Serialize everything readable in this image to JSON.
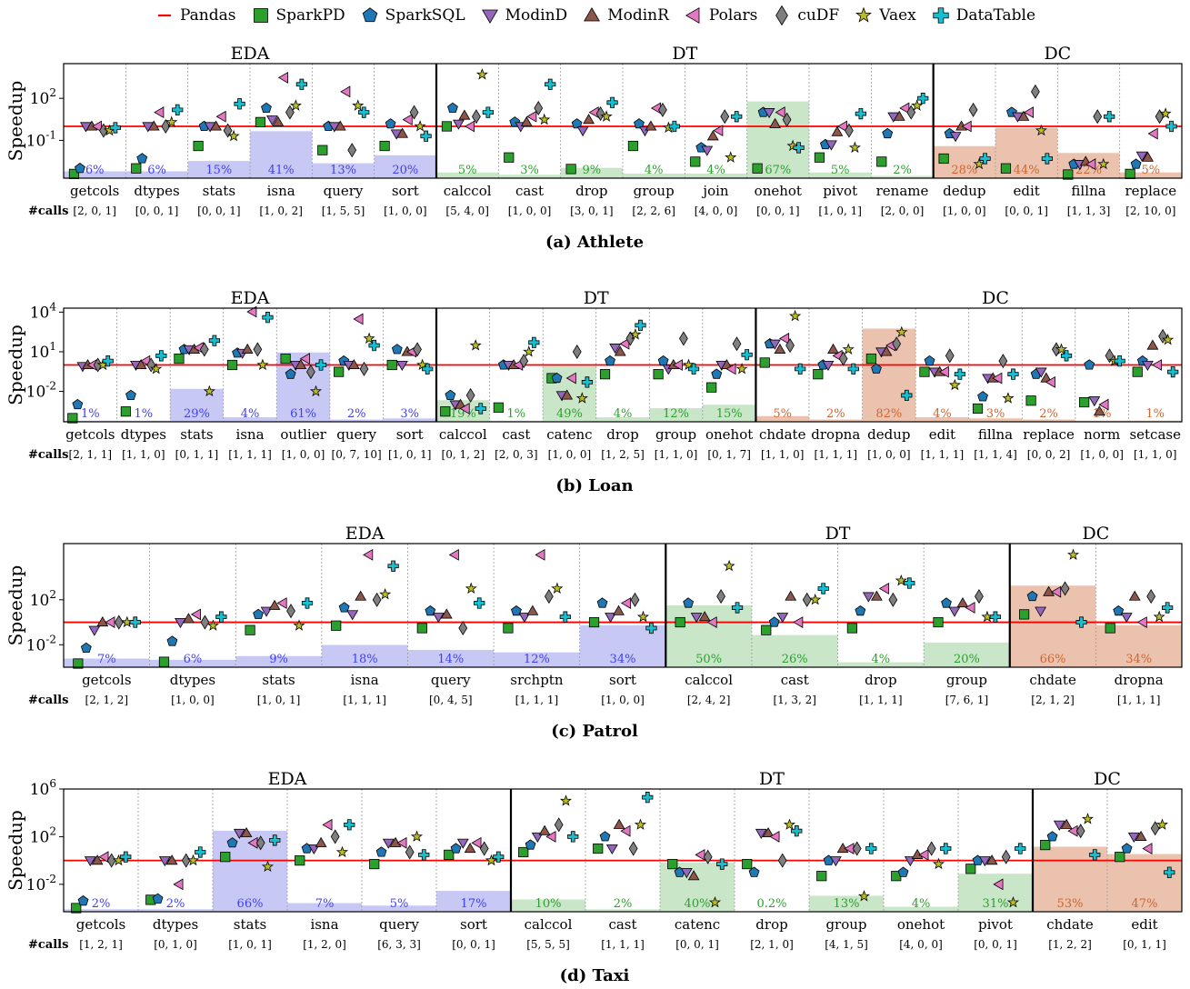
{
  "legend": [
    {
      "name": "Pandas",
      "color": "#ff0000",
      "marker": "line"
    },
    {
      "name": "SparkPD",
      "color": "#2ca02c",
      "marker": "square"
    },
    {
      "name": "SparkSQL",
      "color": "#1f77b4",
      "marker": "pentagon"
    },
    {
      "name": "ModinD",
      "color": "#9467bd",
      "marker": "triangle-down"
    },
    {
      "name": "ModinR",
      "color": "#8c564b",
      "marker": "triangle-up"
    },
    {
      "name": "Polars",
      "color": "#e377c2",
      "marker": "triangle-left"
    },
    {
      "name": "cuDF",
      "color": "#7f7f7f",
      "marker": "diamond"
    },
    {
      "name": "Vaex",
      "color": "#bcbd22",
      "marker": "star"
    },
    {
      "name": "DataTable",
      "color": "#17becf",
      "marker": "plus"
    }
  ],
  "common": {
    "ylabel": "Speedup",
    "calls_label": "#calls",
    "group_colors": {
      "EDA": "#4040ee",
      "DT": "#2ca02c",
      "DC": "#cc6633"
    }
  },
  "chart_data": [
    {
      "type": "scatter",
      "caption": "(a) Athlete",
      "ylabel": "Speedup",
      "yscale": "log",
      "ylim": [
        0.0002,
        30000
      ],
      "yticks": [
        {
          "v": 0.1,
          "label": "10^-1"
        },
        {
          "v": 100,
          "label": "10^2"
        }
      ],
      "baseline": 1,
      "groups": [
        {
          "name": "EDA",
          "n": 6
        },
        {
          "name": "DT",
          "n": 8
        },
        {
          "name": "DC",
          "n": 4
        }
      ],
      "categories": [
        "getcols",
        "dtypes",
        "stats",
        "isna",
        "query",
        "sort",
        "calccol",
        "cast",
        "drop",
        "group",
        "join",
        "onehot",
        "pivot",
        "rename",
        "dedup",
        "edit",
        "fillna",
        "replace"
      ],
      "calls": [
        "[2, 0, 1]",
        "[0, 0, 1]",
        "[0, 0, 1]",
        "[1, 0, 2]",
        "[1, 5, 5]",
        "[1, 0, 0]",
        "[5, 4, 0]",
        "[1, 0, 0]",
        "[3, 0, 1]",
        "[2, 2, 6]",
        "[4, 0, 0]",
        "[0, 0, 1]",
        "[1, 0, 1]",
        "[2, 0, 0]",
        "[1, 0, 0]",
        "[0, 0, 1]",
        "[1, 1, 3]",
        "[2, 10, 0]"
      ],
      "share": [
        6,
        6,
        15,
        41,
        13,
        20,
        5,
        3,
        9,
        4,
        4,
        67,
        5,
        2,
        28,
        44,
        22,
        5
      ],
      "share_labels": [
        "6%",
        "6%",
        "15%",
        "41%",
        "13%",
        "20%",
        "5%",
        "3%",
        "9%",
        "4%",
        "4%",
        "67%",
        "5%",
        "2%",
        "28%",
        "44%",
        "22%",
        "5%"
      ],
      "series": [
        {
          "name": "SparkPD",
          "values": [
            0.0004,
            0.001,
            0.04,
            2,
            0.02,
            0.04,
            1,
            0.006,
            0.0009,
            0.04,
            0.003,
            0.001,
            0.006,
            0.003,
            0.005,
            0.001,
            0.0003,
            0.0004
          ]
        },
        {
          "name": "SparkSQL",
          "values": [
            0.001,
            0.005,
            1,
            20,
            1,
            1.5,
            20,
            2,
            1.5,
            1.5,
            0.03,
            10,
            0.05,
            0.3,
            0.3,
            10,
            0.002,
            0.002
          ]
        },
        {
          "name": "ModinD",
          "values": [
            1,
            1,
            1,
            3,
            1,
            0.3,
            1.5,
            1,
            0.5,
            0.5,
            0.02,
            10,
            0.05,
            5,
            0.2,
            5,
            0.002,
            0.008
          ]
        },
        {
          "name": "ModinR",
          "values": [
            1,
            1,
            1,
            2,
            1,
            0.3,
            6,
            2,
            3,
            1,
            0.2,
            1.5,
            0.4,
            5,
            1,
            5,
            0.003,
            0.006
          ]
        },
        {
          "name": "Polars",
          "values": [
            1,
            10,
            5,
            3000,
            300,
            3,
            1,
            5,
            10,
            20,
            0.5,
            10,
            1,
            20,
            1,
            10,
            0.002,
            0.3
          ]
        },
        {
          "name": "cuDF",
          "values": [
            0.5,
            1,
            0.5,
            10,
            0.02,
            10,
            5,
            20,
            8,
            15,
            5,
            3,
            0.5,
            10,
            15,
            300,
            5,
            5
          ]
        },
        {
          "name": "Vaex",
          "values": [
            0.5,
            2,
            0.2,
            30,
            30,
            1,
            5000,
            3,
            5,
            0.8,
            0.006,
            0.04,
            0.03,
            30,
            0.002,
            0.5,
            0.002,
            8
          ]
        },
        {
          "name": "DataTable",
          "values": [
            0.8,
            15,
            40,
            1000,
            10,
            0.2,
            10,
            1000,
            50,
            1,
            5,
            0.03,
            8,
            100,
            0.005,
            0.005,
            5,
            1
          ]
        }
      ]
    },
    {
      "type": "scatter",
      "caption": "(b) Loan",
      "ylabel": "Speedup",
      "yscale": "log",
      "ylim": [
        5e-05,
        20000
      ],
      "yticks": [
        {
          "v": 0.01,
          "label": "10^-2"
        },
        {
          "v": 10,
          "label": "10^1"
        },
        {
          "v": 10000,
          "label": "10^4"
        }
      ],
      "baseline": 1,
      "groups": [
        {
          "name": "EDA",
          "n": 7
        },
        {
          "name": "DT",
          "n": 6
        },
        {
          "name": "DC",
          "n": 9
        }
      ],
      "categories": [
        "getcols",
        "dtypes",
        "stats",
        "isna",
        "outlier",
        "query",
        "sort",
        "calccol",
        "cast",
        "catenc",
        "drop",
        "group",
        "onehot",
        "chdate",
        "dropna",
        "dedup",
        "edit",
        "fillna",
        "replace",
        "norm",
        "setcase"
      ],
      "calls": [
        "[2, 1, 1]",
        "[1, 1, 0]",
        "[0, 1, 1]",
        "[1, 1, 1]",
        "[1, 0, 0]",
        "[0, 7, 10]",
        "[1, 0, 1]",
        "[0, 1, 2]",
        "[2, 0, 3]",
        "[1, 0, 0]",
        "[1, 2, 5]",
        "[1, 1, 0]",
        "[0, 1, 7]",
        "[1, 1, 0]",
        "[1, 1, 1]",
        "[1, 0, 0]",
        "[1, 1, 1]",
        "[1, 1, 4]",
        "[0, 0, 2]",
        "[1, 0, 0]",
        "[1, 1, 0]"
      ],
      "share": [
        1,
        1,
        29,
        4,
        61,
        2,
        3,
        19,
        1,
        49,
        4,
        12,
        15,
        5,
        2,
        82,
        4,
        3,
        2,
        1,
        1
      ],
      "share_labels": [
        "1%",
        "1%",
        "29%",
        "4%",
        "61%",
        "2%",
        "3%",
        "19%",
        "1%",
        "49%",
        "4%",
        "12%",
        "15%",
        "5%",
        "2%",
        "82%",
        "4%",
        "3%",
        "2%",
        "1%",
        "1%"
      ],
      "series": [
        {
          "name": "SparkPD",
          "values": [
            8e-05,
            0.0003,
            3,
            1,
            3,
            0.3,
            1,
            0.0003,
            0.0006,
            0.1,
            0.2,
            0.2,
            0.02,
            1.5,
            0.2,
            3,
            0.3,
            0.0005,
            0.002,
            0.0015,
            0.3
          ]
        },
        {
          "name": "SparkSQL",
          "values": [
            0.001,
            0.005,
            15,
            8,
            0.2,
            2,
            15,
            0.005,
            1,
            0.1,
            2,
            2,
            0.2,
            40,
            1,
            0.5,
            2,
            0.004,
            0.2,
            1,
            2
          ]
        },
        {
          "name": "ModinD",
          "values": [
            0.8,
            1,
            15,
            8,
            1,
            1,
            1,
            0.001,
            1,
            0.005,
            20,
            0.5,
            1,
            40,
            1,
            10,
            0.3,
            0.1,
            0.3,
            0.002,
            1
          ]
        },
        {
          "name": "ModinR",
          "values": [
            1,
            1,
            15,
            15,
            1,
            1,
            10,
            0.001,
            1,
            0.005,
            10,
            1,
            1,
            15,
            15,
            10,
            0.3,
            0.1,
            0.1,
            0.0003,
            30
          ]
        },
        {
          "name": "Polars",
          "values": [
            1,
            2,
            20,
            30000,
            3,
            3000,
            10,
            0.0005,
            1,
            0.1,
            40,
            1,
            0.5,
            100,
            5,
            30,
            0.3,
            0.1,
            0.05,
            0.001,
            1
          ]
        },
        {
          "name": "cuDF",
          "values": [
            1,
            1,
            15,
            15,
            0.3,
            0.5,
            15,
            0.005,
            2,
            10,
            100,
            100,
            40,
            30,
            3,
            40,
            5,
            2,
            15,
            5,
            150
          ]
        },
        {
          "name": "Vaex",
          "values": [
            1,
            0.5,
            0.01,
            1,
            0.01,
            100,
            1,
            30,
            10,
            0.003,
            200,
            1,
            0.5,
            5000,
            15,
            300,
            0.03,
            0.003,
            15,
            2,
            80
          ]
        },
        {
          "name": "DataTable",
          "values": [
            2,
            5,
            70,
            4000,
            1,
            30,
            0.5,
            0.0005,
            50,
            0.05,
            1000,
            0.5,
            6,
            0.5,
            0.5,
            0.005,
            0.2,
            0.2,
            5,
            2,
            0.3
          ]
        }
      ]
    },
    {
      "type": "scatter",
      "caption": "(c) Patrol",
      "ylabel": "Speedup",
      "yscale": "log",
      "ylim": [
        0.0001,
        10000000
      ],
      "yticks": [
        {
          "v": 0.01,
          "label": "10^-2"
        },
        {
          "v": 100,
          "label": "10^2"
        }
      ],
      "baseline": 1,
      "groups": [
        {
          "name": "EDA",
          "n": 7
        },
        {
          "name": "DT",
          "n": 4
        },
        {
          "name": "DC",
          "n": 2
        }
      ],
      "categories": [
        "getcols",
        "dtypes",
        "stats",
        "isna",
        "query",
        "srchptn",
        "sort",
        "calccol",
        "cast",
        "drop",
        "group",
        "chdate",
        "dropna"
      ],
      "calls": [
        "[2, 1, 2]",
        "[1, 0, 0]",
        "[1, 0, 1]",
        "[1, 1, 1]",
        "[0, 4, 5]",
        "[1, 1, 1]",
        "[1, 0, 0]",
        "[2, 4, 2]",
        "[1, 3, 2]",
        "[1, 1, 1]",
        "[7, 6, 1]",
        "[2, 1, 2]",
        "[1, 1, 1]"
      ],
      "share": [
        7,
        6,
        9,
        18,
        14,
        12,
        34,
        50,
        26,
        4,
        20,
        66,
        34
      ],
      "share_labels": [
        "7%",
        "6%",
        "9%",
        "18%",
        "14%",
        "12%",
        "34%",
        "50%",
        "26%",
        "4%",
        "20%",
        "66%",
        "34%"
      ],
      "series": [
        {
          "name": "SparkPD",
          "values": [
            0.0001,
            0.0003,
            0.2,
            0.5,
            0.3,
            0.3,
            1,
            1,
            0.2,
            0.3,
            1,
            5,
            0.3
          ]
        },
        {
          "name": "SparkSQL",
          "values": [
            0.005,
            0.02,
            5,
            20,
            10,
            10,
            50,
            50,
            1,
            10,
            50,
            200,
            10
          ]
        },
        {
          "name": "ModinD",
          "values": [
            0.2,
            1,
            10,
            5,
            3,
            3,
            3,
            3,
            3,
            200,
            10,
            10,
            3
          ]
        },
        {
          "name": "ModinR",
          "values": [
            1,
            2,
            30,
            200,
            5,
            10,
            10,
            3,
            200,
            200,
            50,
            500,
            200
          ]
        },
        {
          "name": "Polars",
          "values": [
            1,
            5,
            50,
            1000000,
            1000000,
            1000000,
            50,
            1,
            1,
            1000,
            20,
            500,
            1
          ]
        },
        {
          "name": "cuDF",
          "values": [
            1,
            1,
            10,
            100,
            0.3,
            200,
            100,
            200,
            100,
            100,
            200,
            1000,
            200
          ]
        },
        {
          "name": "Vaex",
          "values": [
            1,
            0.5,
            0.5,
            300,
            1000,
            1000,
            3,
            100000,
            100,
            5000,
            3,
            1000000,
            3
          ]
        },
        {
          "name": "DataTable",
          "values": [
            1,
            3,
            50,
            100000,
            50,
            3,
            0.3,
            20,
            1000,
            3000,
            3,
            1,
            20
          ]
        }
      ]
    },
    {
      "type": "scatter",
      "caption": "(d) Taxi",
      "ylabel": "Speedup",
      "yscale": "log",
      "ylim": [
        5e-05,
        1000000
      ],
      "yticks": [
        {
          "v": 0.01,
          "label": "10^-2"
        },
        {
          "v": 100,
          "label": "10^2"
        },
        {
          "v": 1000000,
          "label": "10^6"
        }
      ],
      "baseline": 1,
      "groups": [
        {
          "name": "EDA",
          "n": 6
        },
        {
          "name": "DT",
          "n": 7
        },
        {
          "name": "DC",
          "n": 2
        }
      ],
      "categories": [
        "getcols",
        "dtypes",
        "stats",
        "isna",
        "query",
        "sort",
        "calccol",
        "cast",
        "catenc",
        "drop",
        "group",
        "onehot",
        "pivot",
        "chdate",
        "edit"
      ],
      "calls": [
        "[1, 2, 1]",
        "[0, 1, 0]",
        "[1, 0, 1]",
        "[1, 2, 0]",
        "[6, 3, 3]",
        "[0, 0, 1]",
        "[5, 5, 5]",
        "[1, 1, 1]",
        "[0, 0, 1]",
        "[2, 1, 0]",
        "[4, 1, 5]",
        "[4, 0, 0]",
        "[0, 0, 1]",
        "[1, 2, 2]",
        "[0, 1, 1]"
      ],
      "share": [
        2,
        2,
        66,
        7,
        5,
        17,
        10,
        2,
        40,
        0.2,
        13,
        4,
        31,
        53,
        47
      ],
      "share_labels": [
        "2%",
        "2%",
        "66%",
        "7%",
        "5%",
        "17%",
        "10%",
        "2%",
        "40%",
        "0.2%",
        "13%",
        "4%",
        "31%",
        "53%",
        "47%"
      ],
      "series": [
        {
          "name": "SparkPD",
          "values": [
            0.0001,
            0.0005,
            2,
            1,
            0.5,
            3,
            5,
            10,
            0.5,
            0.5,
            0.05,
            0.05,
            0.2,
            20,
            2
          ]
        },
        {
          "name": "SparkSQL",
          "values": [
            0.0004,
            0.0006,
            30,
            10,
            5,
            10,
            20,
            100,
            0.1,
            0.1,
            1,
            0.1,
            1,
            100,
            10
          ]
        },
        {
          "name": "ModinD",
          "values": [
            1,
            1,
            200,
            10,
            30,
            30,
            100,
            10,
            0.1,
            200,
            1,
            1,
            1,
            1000,
            100
          ]
        },
        {
          "name": "ModinR",
          "values": [
            1,
            1,
            200,
            30,
            30,
            10,
            300,
            1000,
            0.05,
            200,
            10,
            3,
            1,
            1000,
            100
          ]
        },
        {
          "name": "Polars",
          "values": [
            2,
            0.01,
            30,
            1000,
            30,
            30,
            100,
            300,
            3,
            100,
            10,
            3,
            0.01,
            300,
            10
          ]
        },
        {
          "name": "cuDF",
          "values": [
            1,
            1,
            30,
            100,
            5,
            10,
            1000,
            10,
            2,
            1,
            10,
            10,
            2,
            300,
            500
          ]
        },
        {
          "name": "Vaex",
          "values": [
            1,
            1,
            0.3,
            5,
            100,
            1,
            100000,
            1000,
            0.0003,
            1000,
            0.001,
            0.5,
            0.0003,
            3000,
            1000
          ]
        },
        {
          "name": "DataTable",
          "values": [
            2,
            5,
            50,
            1000,
            3,
            2,
            100,
            200000,
            0.5,
            300,
            10,
            10,
            10,
            3,
            0.1
          ]
        }
      ]
    }
  ]
}
